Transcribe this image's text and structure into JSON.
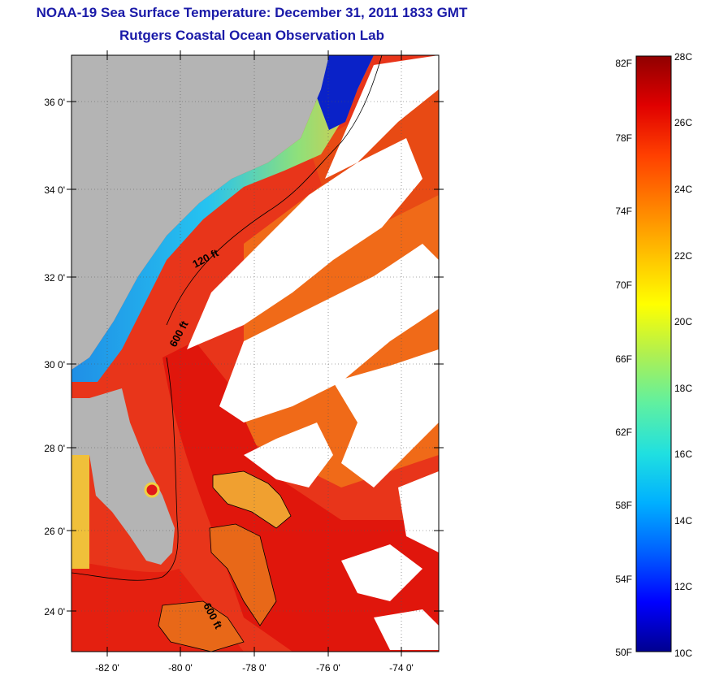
{
  "header": {
    "title": "NOAA-19 Sea Surface Temperature:  December 31, 2011 1833 GMT",
    "subtitle": "Rutgers Coastal Ocean Observation Lab"
  },
  "map": {
    "lat_labels": [
      "36 0'",
      "34 0'",
      "32 0'",
      "30 0'",
      "28 0'",
      "26 0'",
      "24 0'"
    ],
    "lon_labels": [
      "-82 0'",
      "-80 0'",
      "-78 0'",
      "-76 0'",
      "-74 0'"
    ],
    "contour_labels": [
      "120 ft",
      "600 ft",
      "600 ft"
    ],
    "colors": {
      "land": "#b4b4b4",
      "cloud": "#ffffff",
      "warm_water": "#e21a10",
      "mid_water": "#f07a18",
      "cool_water": "#20a8e8",
      "cold_water": "#0a18c8"
    }
  },
  "colorbar": {
    "fahrenheit_labels": [
      "82F",
      "78F",
      "74F",
      "70F",
      "66F",
      "62F",
      "58F",
      "54F",
      "50F"
    ],
    "celsius_labels": [
      "28C",
      "26C",
      "24C",
      "22C",
      "20C",
      "18C",
      "16C",
      "14C",
      "12C",
      "10C"
    ],
    "colormap": [
      "#00008f",
      "#0000ff",
      "#0060ff",
      "#00b0ff",
      "#20e0e0",
      "#60f0a0",
      "#b0f050",
      "#ffff00",
      "#ffc000",
      "#ff8000",
      "#ff4000",
      "#e00000",
      "#900000"
    ]
  }
}
